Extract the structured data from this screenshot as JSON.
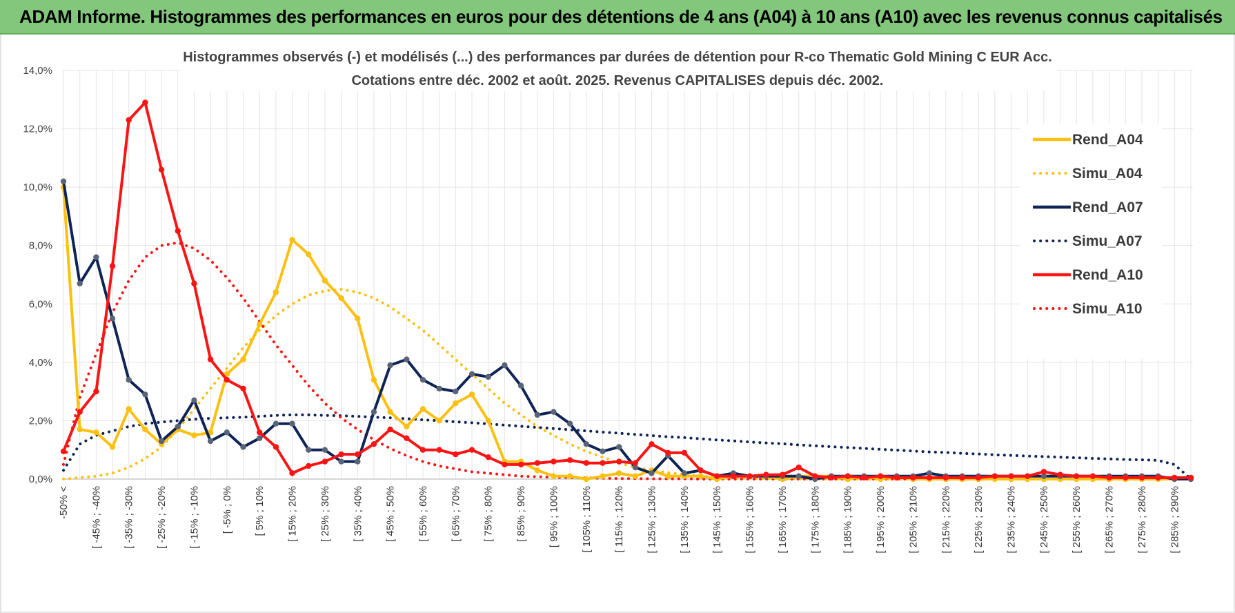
{
  "banner": {
    "title": "ADAM Informe. Histogrammes des performances en euros pour des détentions de 4 ans (A04) à 10 ans (A10) avec les revenus connus capitalisés"
  },
  "colors": {
    "A04": "#fcc010",
    "A07": "#0e2356",
    "A10": "#fa1414",
    "banner": "#82c77c",
    "grid": "#e4e4e4"
  },
  "chart_data": {
    "type": "line",
    "title": "Histogrammes observés (-) et modélisés (...) des performances par durées de détention pour R-co Thematic Gold Mining C EUR Acc.",
    "subtitle": "Cotations entre déc. 2002 et août. 2025. Revenus CAPITALISES depuis déc. 2002.",
    "xlabel": "",
    "ylabel": "",
    "ylim": [
      0,
      14
    ],
    "y_ticks": [
      "0,0%",
      "2,0%",
      "4,0%",
      "6,0%",
      "8,0%",
      "10,0%",
      "12,0%",
      "14,0%"
    ],
    "grid": true,
    "legend_position": "right",
    "x_tick_labels": [
      "-50% <",
      "[ -45% ; -40%",
      "[ -35% ; -30%",
      "[ -25% ; -20%",
      "[ -15% ; -10%",
      "[ -5% ; 0%",
      "[ 5% ; 10%",
      "[ 15% ; 20%",
      "[ 25% ; 30%",
      "[ 35% ; 40%",
      "[ 45% ; 50%",
      "[ 55% ; 60%",
      "[ 65% ; 70%",
      "[ 75% ; 80%",
      "[ 85% ; 90%",
      "[ 95% ; 100%",
      "[ 105% ; 110%",
      "[ 115% ; 120%",
      "[ 125% ; 130%",
      "[ 135% ; 140%",
      "[ 145% ; 150%",
      "[ 155% ; 160%",
      "[ 165% ; 170%",
      "[ 175% ; 180%",
      "[ 185% ; 190%",
      "[ 195% ; 200%",
      "[ 205% ; 210%",
      "[ 215% ; 220%",
      "[ 225% ; 230%",
      "[ 235% ; 240%",
      "[ 245% ; 250%",
      "[ 255% ; 260%",
      "[ 265% ; 270%",
      "[ 275% ; 280%",
      "[ 285% ; 290%"
    ],
    "series": [
      {
        "name": "Rend_A04",
        "color": "#fcc010",
        "style": "solid",
        "values": [
          10.0,
          1.7,
          1.6,
          1.1,
          2.4,
          1.7,
          1.2,
          1.7,
          1.5,
          1.6,
          3.6,
          4.1,
          5.3,
          6.4,
          8.2,
          7.7,
          6.8,
          6.2,
          5.5,
          3.4,
          2.3,
          1.8,
          2.4,
          2.0,
          2.6,
          2.9,
          2.0,
          0.6,
          0.6,
          0.3,
          0.1,
          0.1,
          0.0,
          0.1,
          0.2,
          0.1,
          0.3,
          0.1,
          0.1,
          0.1,
          0.0,
          0.1,
          0.1,
          0.1,
          0.0,
          0.1,
          0.1,
          0.1,
          0.0,
          0.1,
          0.0,
          0.1,
          0.0,
          0.0,
          0.0,
          0.0,
          0.0,
          0.0,
          0.0,
          0.0,
          0.0,
          0.0,
          0.0,
          0.0,
          0.0,
          0.0,
          0.0,
          0.0,
          0.0,
          0.0
        ]
      },
      {
        "name": "Simu_A04",
        "color": "#fcc010",
        "style": "dotted",
        "values": [
          0.0,
          0.05,
          0.1,
          0.2,
          0.4,
          0.7,
          1.1,
          1.7,
          2.4,
          3.1,
          3.8,
          4.5,
          5.1,
          5.6,
          6.0,
          6.3,
          6.45,
          6.5,
          6.4,
          6.2,
          5.9,
          5.5,
          5.1,
          4.6,
          4.1,
          3.6,
          3.1,
          2.6,
          2.2,
          1.8,
          1.5,
          1.2,
          0.95,
          0.75,
          0.55,
          0.4,
          0.3,
          0.22,
          0.15,
          0.1,
          0.08,
          0.05,
          0.03,
          0.02,
          0.01,
          0.01,
          0.0,
          0.0,
          0.0,
          0.0,
          0.0,
          0.0,
          0.0,
          0.0,
          0.0,
          0.0,
          0.0,
          0.0,
          0.0,
          0.0,
          0.0,
          0.0,
          0.0,
          0.0,
          0.0,
          0.0,
          0.0,
          0.0,
          0.0,
          0.0
        ]
      },
      {
        "name": "Rend_A07",
        "color": "#0e2356",
        "style": "solid",
        "values": [
          10.2,
          6.7,
          7.6,
          5.5,
          3.4,
          2.9,
          1.3,
          1.8,
          2.7,
          1.3,
          1.6,
          1.1,
          1.4,
          1.9,
          1.9,
          1.0,
          1.0,
          0.6,
          0.6,
          2.3,
          3.9,
          4.1,
          3.4,
          3.1,
          3.0,
          3.6,
          3.5,
          3.9,
          3.2,
          2.2,
          2.3,
          1.9,
          1.2,
          0.95,
          1.1,
          0.4,
          0.2,
          0.8,
          0.2,
          0.3,
          0.1,
          0.2,
          0.1,
          0.1,
          0.1,
          0.1,
          0.0,
          0.1,
          0.1,
          0.1,
          0.1,
          0.1,
          0.1,
          0.2,
          0.1,
          0.1,
          0.1,
          0.1,
          0.1,
          0.1,
          0.1,
          0.1,
          0.1,
          0.1,
          0.1,
          0.1,
          0.1,
          0.1,
          0.0,
          0.0
        ]
      },
      {
        "name": "Simu_A07",
        "color": "#0e2356",
        "style": "dotted",
        "values": [
          0.3,
          1.2,
          1.5,
          1.65,
          1.8,
          1.9,
          1.95,
          2.0,
          2.05,
          2.08,
          2.1,
          2.12,
          2.15,
          2.18,
          2.2,
          2.2,
          2.18,
          2.17,
          2.15,
          2.12,
          2.1,
          2.07,
          2.03,
          2.0,
          1.96,
          1.93,
          1.89,
          1.85,
          1.81,
          1.77,
          1.73,
          1.69,
          1.65,
          1.61,
          1.57,
          1.53,
          1.49,
          1.45,
          1.42,
          1.38,
          1.34,
          1.31,
          1.27,
          1.24,
          1.21,
          1.17,
          1.14,
          1.11,
          1.08,
          1.05,
          1.02,
          0.99,
          0.96,
          0.93,
          0.91,
          0.88,
          0.86,
          0.83,
          0.81,
          0.79,
          0.77,
          0.75,
          0.73,
          0.71,
          0.69,
          0.67,
          0.66,
          0.64,
          0.5,
          0.0
        ]
      },
      {
        "name": "Rend_A10",
        "color": "#fa1414",
        "style": "solid",
        "values": [
          0.95,
          2.3,
          3.0,
          7.3,
          12.3,
          12.9,
          10.6,
          8.5,
          6.7,
          4.1,
          3.4,
          3.1,
          1.6,
          1.1,
          0.2,
          0.45,
          0.6,
          0.85,
          0.85,
          1.2,
          1.7,
          1.4,
          1.0,
          1.0,
          0.85,
          1.0,
          0.75,
          0.5,
          0.5,
          0.55,
          0.6,
          0.65,
          0.55,
          0.55,
          0.6,
          0.55,
          1.2,
          0.9,
          0.9,
          0.3,
          0.1,
          0.1,
          0.1,
          0.15,
          0.15,
          0.4,
          0.1,
          0.05,
          0.1,
          0.05,
          0.1,
          0.05,
          0.05,
          0.05,
          0.05,
          0.05,
          0.05,
          0.1,
          0.1,
          0.1,
          0.25,
          0.15,
          0.1,
          0.1,
          0.05,
          0.05,
          0.05,
          0.05,
          0.05,
          0.05
        ]
      },
      {
        "name": "Simu_A10",
        "color": "#fa1414",
        "style": "dotted",
        "values": [
          0.5,
          2.8,
          4.3,
          5.7,
          6.8,
          7.6,
          8.0,
          8.1,
          7.9,
          7.5,
          6.9,
          6.2,
          5.4,
          4.6,
          3.9,
          3.2,
          2.6,
          2.1,
          1.7,
          1.35,
          1.05,
          0.8,
          0.6,
          0.45,
          0.35,
          0.25,
          0.2,
          0.15,
          0.1,
          0.08,
          0.06,
          0.05,
          0.04,
          0.03,
          0.02,
          0.02,
          0.01,
          0.01,
          0.01,
          0.0,
          0.0,
          0.0,
          0.0,
          0.0,
          0.0,
          0.0,
          0.0,
          0.0,
          0.0,
          0.0,
          0.0,
          0.0,
          0.0,
          0.0,
          0.0,
          0.0,
          0.0,
          0.0,
          0.0,
          0.0,
          0.0,
          0.0,
          0.0,
          0.0,
          0.0,
          0.0,
          0.0,
          0.0,
          0.0,
          0.0
        ]
      }
    ]
  }
}
